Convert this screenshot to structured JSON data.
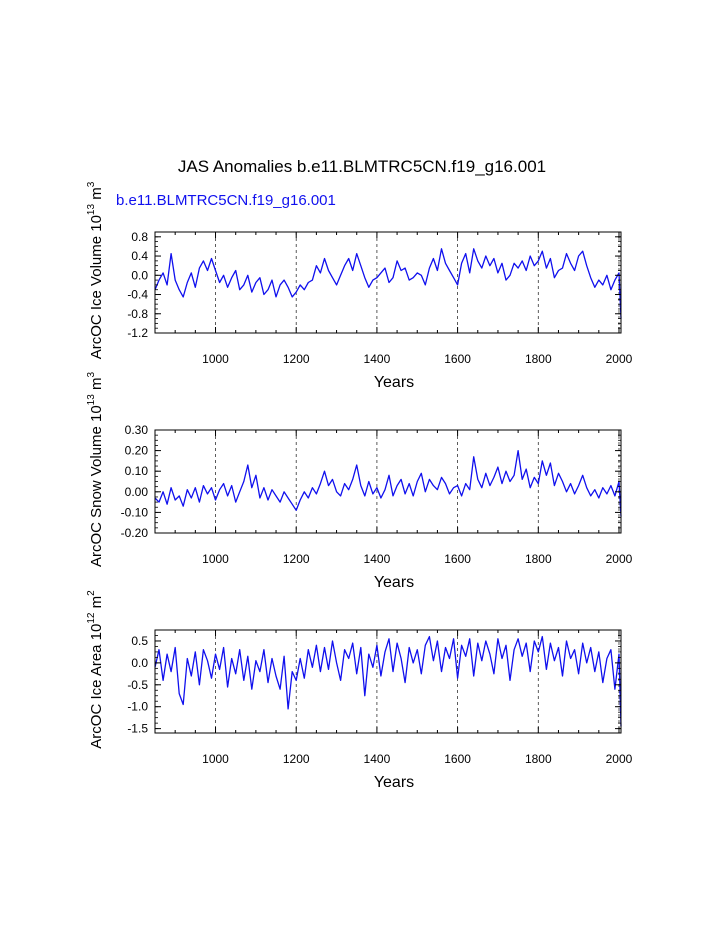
{
  "figure": {
    "title": "JAS Anomalies b.e11.BLMTRC5CN.f19_g16.001",
    "subtitle": "b.e11.BLMTRC5CN.f19_g16.001",
    "line_color": "#1010ee"
  },
  "chart_data": [
    {
      "type": "line",
      "title": "",
      "xlabel": "Years",
      "ylabel_main": "ArcOC Ice Volume 10",
      "ylabel_exp": "13",
      "ylabel_unit": " m",
      "ylabel_unit_exp": "3",
      "xlim": [
        850,
        2005
      ],
      "ylim": [
        -1.2,
        0.9
      ],
      "xticks": [
        1000,
        1200,
        1400,
        1600,
        1800,
        2000
      ],
      "xtick_labels": [
        "1000",
        "1200",
        "1400",
        "1600",
        "1800",
        "2000"
      ],
      "yticks": [
        -1.2,
        -0.8,
        -0.4,
        0.0,
        0.4,
        0.8
      ],
      "ytick_labels": [
        "-1.2",
        "-0.8",
        "-0.4",
        "0.0",
        "0.4",
        "0.8"
      ],
      "grid_x": true,
      "series": [
        {
          "name": "ArcOC Ice Volume",
          "x": [
            850,
            860,
            870,
            880,
            890,
            900,
            910,
            920,
            930,
            940,
            950,
            960,
            970,
            980,
            990,
            1000,
            1010,
            1020,
            1030,
            1040,
            1050,
            1060,
            1070,
            1080,
            1090,
            1100,
            1110,
            1120,
            1130,
            1140,
            1150,
            1160,
            1170,
            1180,
            1190,
            1200,
            1210,
            1220,
            1230,
            1240,
            1250,
            1260,
            1270,
            1280,
            1290,
            1300,
            1310,
            1320,
            1330,
            1340,
            1350,
            1360,
            1370,
            1380,
            1390,
            1400,
            1410,
            1420,
            1430,
            1440,
            1450,
            1460,
            1470,
            1480,
            1490,
            1500,
            1510,
            1520,
            1530,
            1540,
            1550,
            1560,
            1570,
            1580,
            1590,
            1600,
            1610,
            1620,
            1630,
            1640,
            1650,
            1660,
            1670,
            1680,
            1690,
            1700,
            1710,
            1720,
            1730,
            1740,
            1750,
            1760,
            1770,
            1780,
            1790,
            1800,
            1810,
            1820,
            1830,
            1840,
            1850,
            1860,
            1870,
            1880,
            1890,
            1900,
            1910,
            1920,
            1930,
            1940,
            1950,
            1960,
            1970,
            1980,
            1990,
            2000,
            2005
          ],
          "values": [
            -0.3,
            -0.1,
            0.05,
            -0.2,
            0.45,
            -0.1,
            -0.3,
            -0.45,
            -0.15,
            0.05,
            -0.25,
            0.15,
            0.3,
            0.1,
            0.35,
            0.1,
            -0.15,
            0.0,
            -0.25,
            -0.05,
            0.1,
            -0.3,
            -0.2,
            0.0,
            -0.35,
            -0.15,
            -0.05,
            -0.4,
            -0.3,
            -0.1,
            -0.45,
            -0.2,
            -0.1,
            -0.25,
            -0.45,
            -0.35,
            -0.2,
            -0.3,
            -0.15,
            -0.1,
            0.2,
            0.05,
            0.35,
            0.1,
            -0.05,
            -0.2,
            0.0,
            0.2,
            0.35,
            0.1,
            0.45,
            0.2,
            -0.05,
            -0.25,
            -0.1,
            -0.05,
            0.05,
            0.15,
            -0.15,
            -0.05,
            0.3,
            0.1,
            0.15,
            -0.1,
            -0.05,
            0.05,
            0.0,
            -0.2,
            0.15,
            0.35,
            0.1,
            0.55,
            0.25,
            0.1,
            -0.05,
            -0.2,
            0.25,
            0.45,
            0.05,
            0.55,
            0.3,
            0.15,
            0.4,
            0.2,
            0.35,
            0.05,
            0.25,
            -0.1,
            0.0,
            0.25,
            0.15,
            0.3,
            0.1,
            0.4,
            0.2,
            0.3,
            0.5,
            0.15,
            0.35,
            -0.05,
            0.1,
            0.15,
            0.45,
            0.25,
            0.1,
            0.4,
            0.5,
            0.2,
            -0.05,
            -0.25,
            -0.1,
            -0.2,
            0.0,
            -0.3,
            -0.1,
            0.05,
            -0.9
          ]
        }
      ]
    },
    {
      "type": "line",
      "title": "",
      "xlabel": "Years",
      "ylabel_main": "ArcOC Snow Volume 10",
      "ylabel_exp": "13",
      "ylabel_unit": " m",
      "ylabel_unit_exp": "3",
      "xlim": [
        850,
        2005
      ],
      "ylim": [
        -0.2,
        0.3
      ],
      "xticks": [
        1000,
        1200,
        1400,
        1600,
        1800,
        2000
      ],
      "xtick_labels": [
        "1000",
        "1200",
        "1400",
        "1600",
        "1800",
        "2000"
      ],
      "yticks": [
        -0.2,
        -0.1,
        0.0,
        0.1,
        0.2,
        0.3
      ],
      "ytick_labels": [
        "-0.20",
        "-0.10",
        "0.00",
        "0.10",
        "0.20",
        "0.30"
      ],
      "grid_x": true,
      "series": [
        {
          "name": "ArcOC Snow Volume",
          "x": [
            850,
            860,
            870,
            880,
            890,
            900,
            910,
            920,
            930,
            940,
            950,
            960,
            970,
            980,
            990,
            1000,
            1010,
            1020,
            1030,
            1040,
            1050,
            1060,
            1070,
            1080,
            1090,
            1100,
            1110,
            1120,
            1130,
            1140,
            1150,
            1160,
            1170,
            1180,
            1190,
            1200,
            1210,
            1220,
            1230,
            1240,
            1250,
            1260,
            1270,
            1280,
            1290,
            1300,
            1310,
            1320,
            1330,
            1340,
            1350,
            1360,
            1370,
            1380,
            1390,
            1400,
            1410,
            1420,
            1430,
            1440,
            1450,
            1460,
            1470,
            1480,
            1490,
            1500,
            1510,
            1520,
            1530,
            1540,
            1550,
            1560,
            1570,
            1580,
            1590,
            1600,
            1610,
            1620,
            1630,
            1640,
            1650,
            1660,
            1670,
            1680,
            1690,
            1700,
            1710,
            1720,
            1730,
            1740,
            1750,
            1760,
            1770,
            1780,
            1790,
            1800,
            1810,
            1820,
            1830,
            1840,
            1850,
            1860,
            1870,
            1880,
            1890,
            1900,
            1910,
            1920,
            1930,
            1940,
            1950,
            1960,
            1970,
            1980,
            1990,
            2000,
            2005
          ],
          "values": [
            -0.03,
            -0.05,
            0.0,
            -0.06,
            0.02,
            -0.04,
            -0.02,
            -0.07,
            0.01,
            -0.03,
            0.02,
            -0.05,
            0.03,
            -0.01,
            0.02,
            -0.04,
            0.01,
            0.04,
            -0.02,
            0.03,
            -0.05,
            0.0,
            0.05,
            0.13,
            0.02,
            0.08,
            -0.03,
            0.02,
            -0.04,
            0.01,
            -0.02,
            -0.05,
            0.0,
            -0.03,
            -0.06,
            -0.09,
            -0.04,
            0.0,
            -0.03,
            0.02,
            -0.01,
            0.04,
            0.1,
            0.03,
            0.06,
            0.0,
            -0.02,
            0.04,
            0.01,
            0.06,
            0.13,
            0.03,
            -0.02,
            0.05,
            -0.01,
            0.02,
            -0.03,
            0.01,
            0.08,
            -0.02,
            0.03,
            0.06,
            -0.01,
            0.04,
            -0.02,
            0.05,
            0.09,
            0.0,
            0.06,
            0.03,
            0.01,
            0.07,
            0.04,
            -0.01,
            0.02,
            0.03,
            -0.02,
            0.04,
            0.01,
            0.17,
            0.06,
            0.02,
            0.09,
            0.03,
            0.07,
            0.12,
            0.04,
            0.1,
            0.05,
            0.08,
            0.2,
            0.06,
            0.11,
            0.02,
            0.07,
            0.04,
            0.15,
            0.08,
            0.14,
            0.03,
            0.09,
            0.05,
            0.0,
            0.04,
            -0.01,
            0.03,
            0.08,
            0.02,
            -0.02,
            0.01,
            -0.03,
            0.02,
            -0.01,
            0.03,
            -0.02,
            0.05,
            -0.12
          ]
        }
      ]
    },
    {
      "type": "line",
      "title": "",
      "xlabel": "Years",
      "ylabel_main": "ArcOC Ice Area 10",
      "ylabel_exp": "12",
      "ylabel_unit": " m",
      "ylabel_unit_exp": "2",
      "xlim": [
        850,
        2005
      ],
      "ylim": [
        -1.6,
        0.75
      ],
      "xticks": [
        1000,
        1200,
        1400,
        1600,
        1800,
        2000
      ],
      "xtick_labels": [
        "1000",
        "1200",
        "1400",
        "1600",
        "1800",
        "2000"
      ],
      "yticks": [
        -1.5,
        -1.0,
        -0.5,
        0.0,
        0.5
      ],
      "ytick_labels": [
        "-1.5",
        "-1.0",
        "-0.5",
        "0.0",
        "0.5"
      ],
      "grid_x": true,
      "series": [
        {
          "name": "ArcOC Ice Area",
          "x": [
            850,
            860,
            870,
            880,
            890,
            900,
            910,
            920,
            930,
            940,
            950,
            960,
            970,
            980,
            990,
            1000,
            1010,
            1020,
            1030,
            1040,
            1050,
            1060,
            1070,
            1080,
            1090,
            1100,
            1110,
            1120,
            1130,
            1140,
            1150,
            1160,
            1170,
            1180,
            1190,
            1200,
            1210,
            1220,
            1230,
            1240,
            1250,
            1260,
            1270,
            1280,
            1290,
            1300,
            1310,
            1320,
            1330,
            1340,
            1350,
            1360,
            1370,
            1380,
            1390,
            1400,
            1410,
            1420,
            1430,
            1440,
            1450,
            1460,
            1470,
            1480,
            1490,
            1500,
            1510,
            1520,
            1530,
            1540,
            1550,
            1560,
            1570,
            1580,
            1590,
            1600,
            1610,
            1620,
            1630,
            1640,
            1650,
            1660,
            1670,
            1680,
            1690,
            1700,
            1710,
            1720,
            1730,
            1740,
            1750,
            1760,
            1770,
            1780,
            1790,
            1800,
            1810,
            1820,
            1830,
            1840,
            1850,
            1860,
            1870,
            1880,
            1890,
            1900,
            1910,
            1920,
            1930,
            1940,
            1950,
            1960,
            1970,
            1980,
            1990,
            2000,
            2005
          ],
          "values": [
            -0.1,
            0.3,
            -0.4,
            0.2,
            -0.2,
            0.35,
            -0.7,
            -0.95,
            0.1,
            -0.3,
            0.25,
            -0.5,
            0.3,
            0.05,
            -0.35,
            0.2,
            -0.15,
            0.35,
            -0.55,
            0.1,
            -0.25,
            0.3,
            -0.4,
            0.15,
            -0.6,
            0.05,
            -0.2,
            0.3,
            -0.45,
            0.1,
            -0.3,
            -0.6,
            0.15,
            -1.05,
            -0.2,
            -0.4,
            0.1,
            -0.35,
            0.3,
            -0.1,
            0.4,
            -0.2,
            0.35,
            -0.15,
            0.5,
            0.0,
            -0.4,
            0.3,
            0.1,
            0.45,
            -0.25,
            0.35,
            -0.75,
            0.2,
            -0.1,
            0.4,
            -0.3,
            0.25,
            0.55,
            -0.2,
            0.45,
            0.1,
            -0.45,
            0.35,
            0.0,
            0.3,
            -0.25,
            0.4,
            0.6,
            0.05,
            0.5,
            -0.2,
            0.35,
            0.1,
            0.55,
            -0.35,
            0.4,
            0.15,
            0.55,
            -0.3,
            0.45,
            0.05,
            0.5,
            0.2,
            -0.25,
            0.55,
            0.1,
            0.4,
            -0.4,
            0.3,
            0.55,
            0.15,
            0.45,
            -0.2,
            0.5,
            0.25,
            0.6,
            -0.15,
            0.45,
            0.05,
            0.35,
            -0.3,
            0.5,
            0.1,
            0.3,
            -0.25,
            0.45,
            0.0,
            0.35,
            -0.2,
            0.25,
            -0.45,
            0.1,
            0.3,
            -0.6,
            0.2,
            -1.45
          ]
        }
      ]
    }
  ]
}
